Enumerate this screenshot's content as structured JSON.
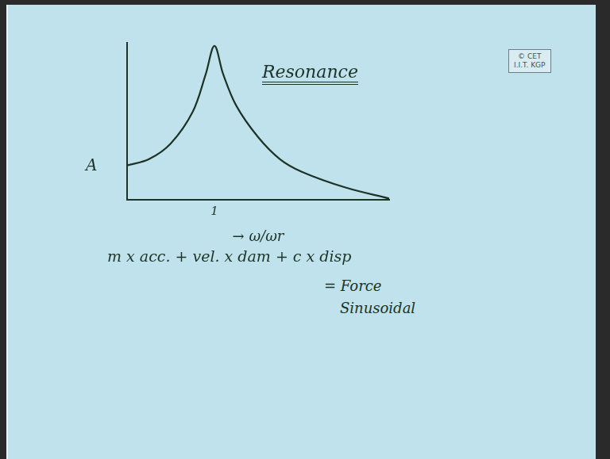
{
  "chart_data": {
    "type": "line",
    "x_label": "→ ω/ωr",
    "y_label": "A",
    "x": [
      0,
      0.25,
      0.5,
      0.75,
      0.9,
      1.0,
      1.1,
      1.25,
      1.5,
      1.75,
      2.0,
      2.5,
      3.0
    ],
    "values": [
      1.1,
      1.3,
      1.8,
      2.8,
      4.0,
      4.9,
      4.0,
      3.0,
      2.0,
      1.3,
      0.9,
      0.4,
      0.05
    ],
    "color": "#1c3326",
    "xlim": [
      0,
      3
    ],
    "xticks": [
      1
    ],
    "ylim": [
      0,
      5
    ],
    "grid": false,
    "tick_labels": "x",
    "annotations": [
      "Resonance",
      "m x acc. + vel. x dam + c x disp",
      "= Force",
      "Sinusoidal",
      "© CET",
      "I.I.T. KGP"
    ]
  }
}
